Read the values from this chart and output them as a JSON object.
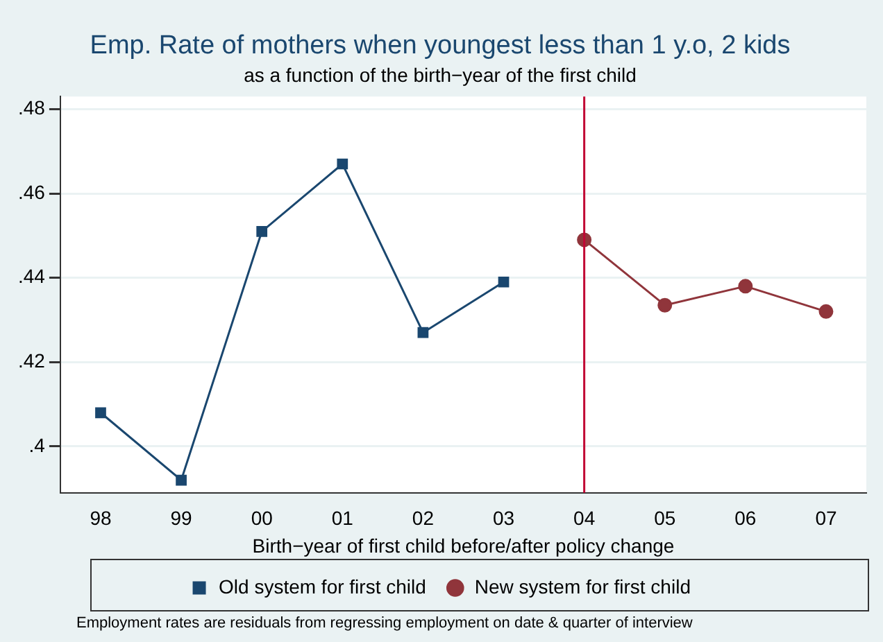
{
  "chart_data": {
    "type": "line",
    "title": "Emp. Rate of mothers when youngest less than 1 y.o, 2 kids",
    "subtitle": "as a function of the birth−year of the first child",
    "xlabel": "Birth−year of first child before/after policy change",
    "categories": [
      "98",
      "99",
      "00",
      "01",
      "02",
      "03",
      "04",
      "05",
      "06",
      "07"
    ],
    "series": [
      {
        "name": "Old system for first child",
        "color": "#1a476f",
        "marker": "square",
        "values": [
          0.408,
          0.392,
          0.451,
          0.467,
          0.427,
          0.439,
          null,
          null,
          null,
          null
        ]
      },
      {
        "name": "New system for first child",
        "color": "#90353b",
        "marker": "circle",
        "values": [
          null,
          null,
          null,
          null,
          null,
          null,
          0.449,
          0.4335,
          0.438,
          0.432
        ]
      }
    ],
    "ylim": [
      0.389,
      0.483
    ],
    "yticks": [
      {
        "value": 0.4,
        "label": ".4"
      },
      {
        "value": 0.42,
        "label": ".42"
      },
      {
        "value": 0.44,
        "label": ".44"
      },
      {
        "value": 0.46,
        "label": ".46"
      },
      {
        "value": 0.48,
        "label": ".48"
      }
    ],
    "ref_lines": [
      {
        "axis": "x",
        "value": "04",
        "color": "#c10534"
      }
    ],
    "grid": "y",
    "legend": "bottom",
    "annotations": [
      "Employment rates are residuals from regressing employment on date & quarter of interview"
    ]
  }
}
